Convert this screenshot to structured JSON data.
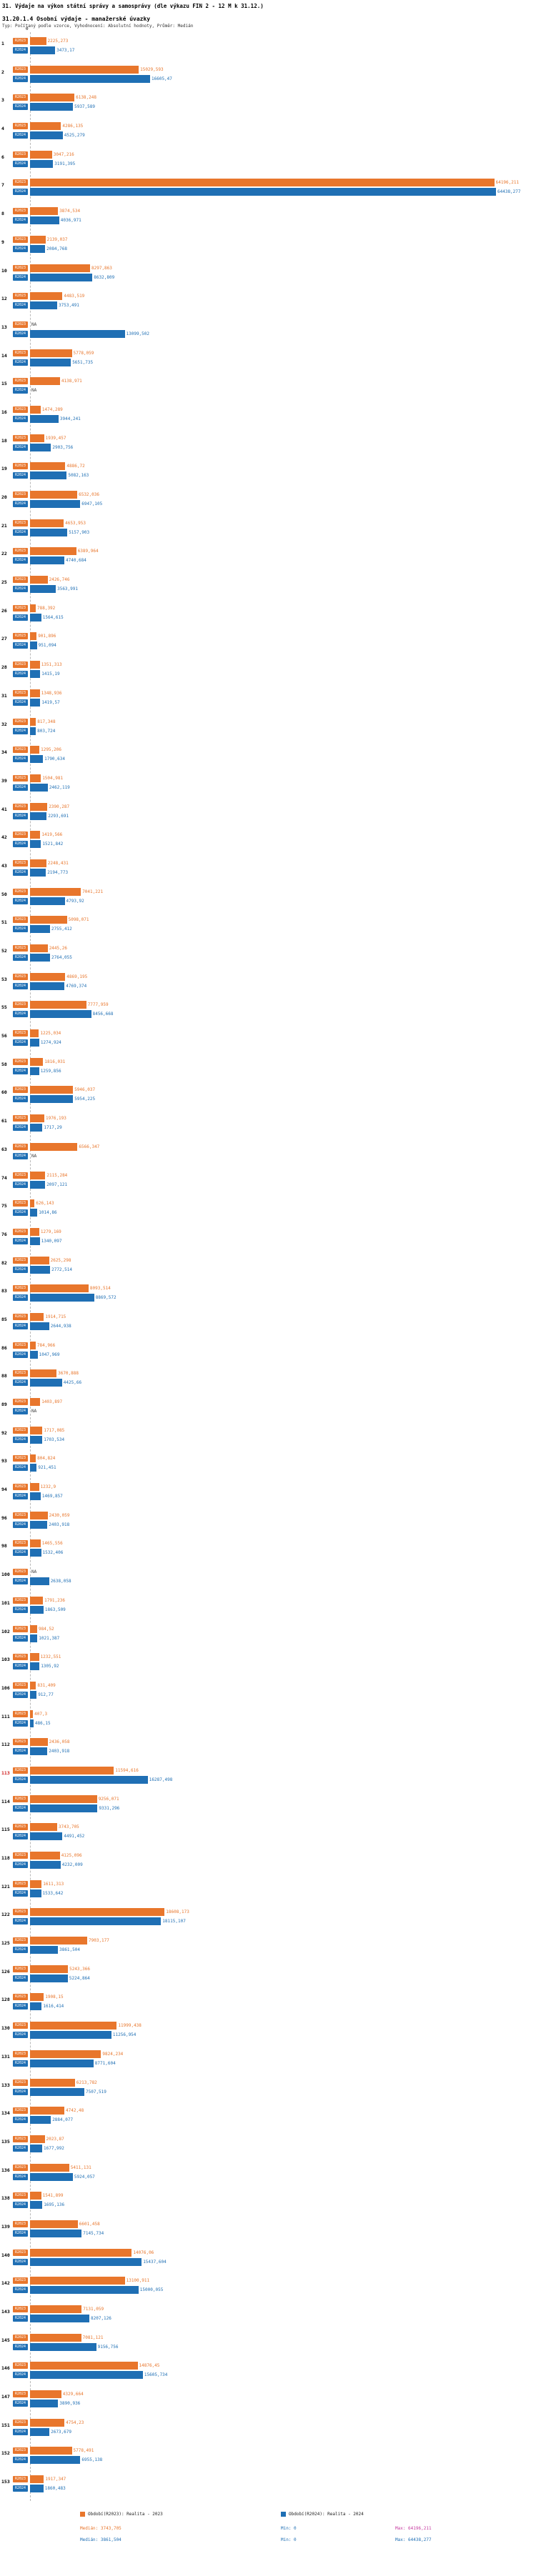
{
  "page": {
    "title": "31. Výdaje na výkon státní správy a samosprávy (dle výkazu FIN 2 - 12 M k 31.12.)",
    "subtitle": "31.20.1.4 Osobní výdaje - manažerské úvazky",
    "meta": "Typ: Počítaný podle vzorce, Vyhodnocení: Absolutní hodnoty, Průměr: Medián"
  },
  "colors": {
    "r2023_orange": "#e8762c",
    "r2024_blue": "#1f6fb4",
    "highlight_row_red": "#d02020",
    "max2023_magenta": "#c5399f"
  },
  "chart_data": {
    "type": "bar",
    "orientation": "horizontal",
    "axis_zero_label": "0",
    "x_min": 0,
    "x_max": 64438.277,
    "grid": "zero-axis dashed vertical line only",
    "legend_position": "bottom",
    "series": [
      "R2023",
      "R2024"
    ],
    "series_titles": [
      "Realita - 2023",
      "Realita - 2024"
    ],
    "na_label": "NA",
    "rows": [
      {
        "label": "1",
        "r2023": "2225,273",
        "r2024": "3473,17"
      },
      {
        "label": "2",
        "r2023": "15029,593",
        "r2024": "16605,47"
      },
      {
        "label": "3",
        "r2023": "6138,248",
        "r2024": "5937,589"
      },
      {
        "label": "4",
        "r2023": "4286,135",
        "r2024": "4525,279"
      },
      {
        "label": "6",
        "r2023": "3047,216",
        "r2024": "3191,395"
      },
      {
        "label": "7",
        "r2023": "64196,211",
        "r2024": "64438,277"
      },
      {
        "label": "8",
        "r2023": "3874,534",
        "r2024": "4036,971"
      },
      {
        "label": "9",
        "r2023": "2139,037",
        "r2024": "2084,768"
      },
      {
        "label": "10",
        "r2023": "8297,863",
        "r2024": "8632,809"
      },
      {
        "label": "12",
        "r2023": "4483,519",
        "r2024": "3753,491"
      },
      {
        "label": "13",
        "r2023": "NA",
        "r2024": "13099,502"
      },
      {
        "label": "14",
        "r2023": "5778,059",
        "r2024": "5651,735"
      },
      {
        "label": "15",
        "r2023": "4138,971",
        "r2024": "NA"
      },
      {
        "label": "16",
        "r2023": "1474,289",
        "r2024": "3944,241"
      },
      {
        "label": "18",
        "r2023": "1939,457",
        "r2024": "2903,756"
      },
      {
        "label": "19",
        "r2023": "4886,72",
        "r2024": "5082,163"
      },
      {
        "label": "20",
        "r2023": "6532,036",
        "r2024": "6947,105"
      },
      {
        "label": "21",
        "r2023": "4653,953",
        "r2024": "5157,903"
      },
      {
        "label": "22",
        "r2023": "6389,964",
        "r2024": "4740,684"
      },
      {
        "label": "25",
        "r2023": "2426,746",
        "r2024": "3563,991"
      },
      {
        "label": "26",
        "r2023": "788,392",
        "r2024": "1564,615"
      },
      {
        "label": "27",
        "r2023": "901,896",
        "r2024": "951,094"
      },
      {
        "label": "28",
        "r2023": "1351,313",
        "r2024": "1415,19"
      },
      {
        "label": "31",
        "r2023": "1348,936",
        "r2024": "1419,57"
      },
      {
        "label": "32",
        "r2023": "817,348",
        "r2024": "803,724"
      },
      {
        "label": "34",
        "r2023": "1295,206",
        "r2024": "1790,634"
      },
      {
        "label": "39",
        "r2023": "1504,981",
        "r2024": "2462,119"
      },
      {
        "label": "41",
        "r2023": "2390,287",
        "r2024": "2293,691"
      },
      {
        "label": "42",
        "r2023": "1419,566",
        "r2024": "1521,842"
      },
      {
        "label": "43",
        "r2023": "2248,431",
        "r2024": "2194,773"
      },
      {
        "label": "50",
        "r2023": "7041,221",
        "r2024": "4793,92"
      },
      {
        "label": "51",
        "r2023": "5098,071",
        "r2024": "2755,412"
      },
      {
        "label": "52",
        "r2023": "2445,26",
        "r2024": "2764,055"
      },
      {
        "label": "53",
        "r2023": "4869,195",
        "r2024": "4769,374"
      },
      {
        "label": "55",
        "r2023": "7777,959",
        "r2024": "8456,668"
      },
      {
        "label": "56",
        "r2023": "1225,034",
        "r2024": "1274,924"
      },
      {
        "label": "58",
        "r2023": "1816,031",
        "r2024": "1259,856"
      },
      {
        "label": "60",
        "r2023": "5946,037",
        "r2024": "5954,225"
      },
      {
        "label": "61",
        "r2023": "1976,193",
        "r2024": "1717,29"
      },
      {
        "label": "63",
        "r2023": "6566,347",
        "r2024": "NA"
      },
      {
        "label": "74",
        "r2023": "2115,284",
        "r2024": "2097,121"
      },
      {
        "label": "75",
        "r2023": "626,143",
        "r2024": "1014,86"
      },
      {
        "label": "76",
        "r2023": "1279,169",
        "r2024": "1340,097"
      },
      {
        "label": "82",
        "r2023": "2625,298",
        "r2024": "2772,514"
      },
      {
        "label": "83",
        "r2023": "8093,514",
        "r2024": "8869,572"
      },
      {
        "label": "85",
        "r2023": "1914,715",
        "r2024": "2644,938"
      },
      {
        "label": "86",
        "r2023": "784,966",
        "r2024": "1047,969"
      },
      {
        "label": "88",
        "r2023": "3670,888",
        "r2024": "4425,66"
      },
      {
        "label": "89",
        "r2023": "1403,897",
        "r2024": "NA"
      },
      {
        "label": "92",
        "r2023": "1717,085",
        "r2024": "1703,534"
      },
      {
        "label": "93",
        "r2023": "804,824",
        "r2024": "921,451"
      },
      {
        "label": "94",
        "r2023": "1232,9",
        "r2024": "1469,857"
      },
      {
        "label": "96",
        "r2023": "2430,059",
        "r2024": "2403,918"
      },
      {
        "label": "98",
        "r2023": "1465,556",
        "r2024": "1532,406"
      },
      {
        "label": "100",
        "r2023": "NA",
        "r2024": "2638,058"
      },
      {
        "label": "101",
        "r2023": "1791,236",
        "r2024": "1863,509"
      },
      {
        "label": "102",
        "r2023": "984,52",
        "r2024": "1021,387"
      },
      {
        "label": "103",
        "r2023": "1232,551",
        "r2024": "1305,92"
      },
      {
        "label": "106",
        "r2023": "831,409",
        "r2024": "912,77"
      },
      {
        "label": "111",
        "r2023": "407,3",
        "r2024": "486,15"
      },
      {
        "label": "112",
        "r2023": "2436,058",
        "r2024": "2403,918"
      },
      {
        "label": "113",
        "r2023": "11594,616",
        "r2024": "16287,498",
        "highlight": true
      },
      {
        "label": "114",
        "r2023": "9256,071",
        "r2024": "9331,296"
      },
      {
        "label": "115",
        "r2023": "3743,705",
        "r2024": "4491,452"
      },
      {
        "label": "118",
        "r2023": "4125,096",
        "r2024": "4232,009"
      },
      {
        "label": "121",
        "r2023": "1611,313",
        "r2024": "1533,642"
      },
      {
        "label": "122",
        "r2023": "18608,173",
        "r2024": "18115,107"
      },
      {
        "label": "125",
        "r2023": "7903,177",
        "r2024": "3861,504"
      },
      {
        "label": "126",
        "r2023": "5243,366",
        "r2024": "5224,864"
      },
      {
        "label": "128",
        "r2023": "1908,15",
        "r2024": "1616,414"
      },
      {
        "label": "130",
        "r2023": "11999,438",
        "r2024": "11256,954"
      },
      {
        "label": "131",
        "r2023": "9824,234",
        "r2024": "8771,604"
      },
      {
        "label": "133",
        "r2023": "6213,782",
        "r2024": "7507,519"
      },
      {
        "label": "134",
        "r2023": "4742,48",
        "r2024": "2884,077"
      },
      {
        "label": "135",
        "r2023": "2023,87",
        "r2024": "1677,992"
      },
      {
        "label": "136",
        "r2023": "5411,131",
        "r2024": "5924,057"
      },
      {
        "label": "138",
        "r2023": "1541,899",
        "r2024": "1695,136"
      },
      {
        "label": "139",
        "r2023": "6601,458",
        "r2024": "7145,734"
      },
      {
        "label": "140",
        "r2023": "14076,06",
        "r2024": "15437,604"
      },
      {
        "label": "142",
        "r2023": "13100,911",
        "r2024": "15000,055"
      },
      {
        "label": "143",
        "r2023": "7131,059",
        "r2024": "8207,126"
      },
      {
        "label": "145",
        "r2023": "7081,121",
        "r2024": "9156,756"
      },
      {
        "label": "146",
        "r2023": "14876,45",
        "r2024": "15605,734"
      },
      {
        "label": "147",
        "r2023": "4329,664",
        "r2024": "3890,936"
      },
      {
        "label": "151",
        "r2023": "4754,23",
        "r2024": "2673,679"
      },
      {
        "label": "152",
        "r2023": "5778,491",
        "r2024": "6955,138"
      },
      {
        "label": "153",
        "r2023": "1917,347",
        "r2024": "1860,483"
      }
    ]
  },
  "footer": {
    "legend_2023": "Období(R2023): Realita - 2023",
    "legend_2024": "Období(R2024): Realita - 2024",
    "stats_2023": {
      "median_label": "Medián: 3743,705",
      "min_label": "Min: 0",
      "max_label": "Max: 64196,211"
    },
    "stats_2024": {
      "median_label": "Medián: 3861,504",
      "min_label": "Min: 0",
      "max_label": "Max: 64438,277"
    }
  }
}
